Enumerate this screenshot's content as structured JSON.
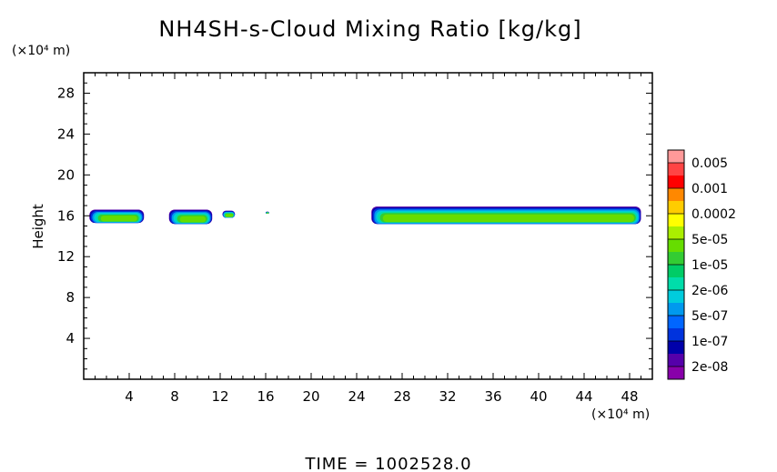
{
  "chart_data": {
    "type": "heatmap",
    "title": "NH4SH-s-Cloud Mixing Ratio [kg/kg]",
    "xlabel": "",
    "ylabel": "Height",
    "x_unit": "(×10⁴ m)",
    "y_unit": "(×10⁴ m)",
    "xlim": [
      0,
      50
    ],
    "ylim": [
      0,
      30
    ],
    "x_ticks": [
      4,
      8,
      12,
      16,
      20,
      24,
      28,
      32,
      36,
      40,
      44,
      48
    ],
    "y_ticks": [
      4,
      8,
      12,
      16,
      20,
      24,
      28
    ],
    "colorbar": {
      "labels": [
        "0.005",
        "0.001",
        "0.0002",
        "5e-05",
        "1e-05",
        "2e-06",
        "5e-07",
        "1e-07",
        "2e-08"
      ],
      "colors": [
        "#ff9999",
        "#ff4444",
        "#ff0000",
        "#ff8800",
        "#ffcc00",
        "#ffff00",
        "#aaee00",
        "#66dd00",
        "#33cc33",
        "#00cc66",
        "#00ddaa",
        "#00ccdd",
        "#0099ee",
        "#0066ff",
        "#0033dd",
        "#0000aa",
        "#5500aa",
        "#8800aa"
      ]
    },
    "cloud_layers": [
      {
        "x_start": 0.5,
        "x_end": 5.3,
        "y_base": 15.3,
        "y_top": 16.6
      },
      {
        "x_start": 7.5,
        "x_end": 11.3,
        "y_base": 15.2,
        "y_top": 16.6
      },
      {
        "x_start": 12.2,
        "x_end": 13.3,
        "y_base": 15.8,
        "y_top": 16.5
      },
      {
        "x_start": 16.0,
        "x_end": 16.3,
        "y_base": 16.2,
        "y_top": 16.4
      },
      {
        "x_start": 25.3,
        "x_end": 49.0,
        "y_base": 15.2,
        "y_top": 16.9
      }
    ],
    "grid": false
  },
  "footer": {
    "time_label": "TIME = 1002528.0"
  }
}
